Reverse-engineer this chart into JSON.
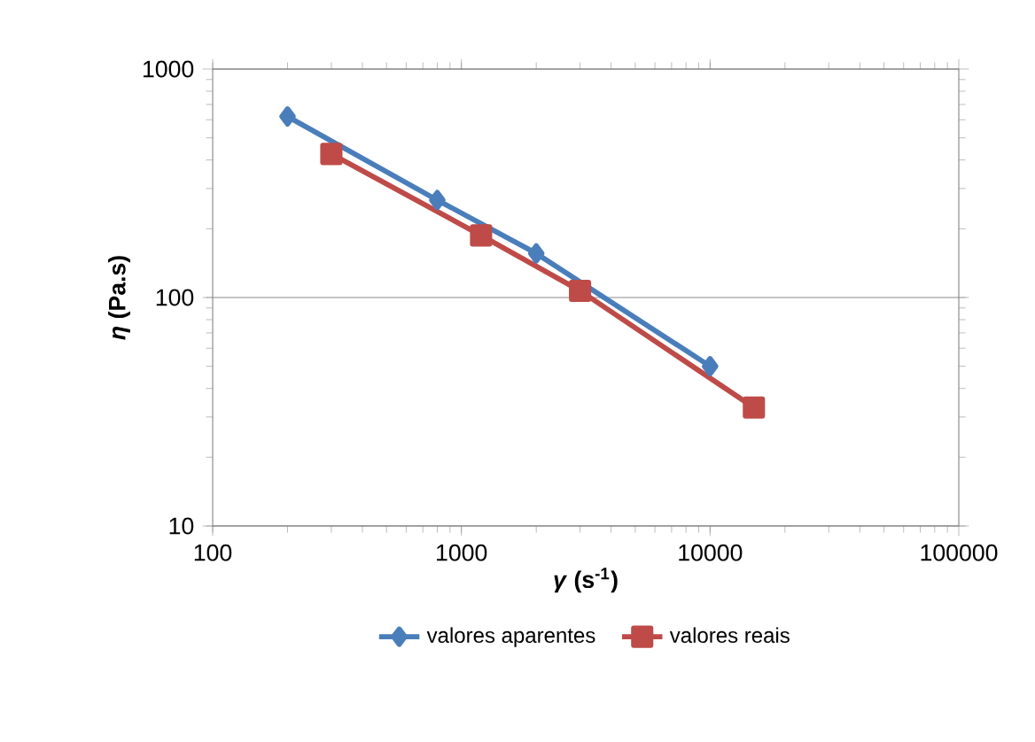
{
  "chart_data": {
    "type": "line",
    "xlabel": "*γ* (s$^{-1}$)",
    "ylabel": "*η* (Pa.s)",
    "log": "xy",
    "xlim": [
      100,
      100000
    ],
    "ylim": [
      10,
      1000
    ],
    "xticks": [
      100,
      1000,
      10000,
      100000
    ],
    "yticks": [
      10,
      100,
      1000
    ],
    "grid": "y",
    "legend": "bottom",
    "line_style": "solid",
    "series": [
      {
        "name": "valores aparentes",
        "color": "#4a7ebb",
        "marker": "diamond",
        "x": [
          200,
          800,
          2000,
          10000
        ],
        "values": [
          620,
          267,
          156,
          50
        ]
      },
      {
        "name": "valores reais",
        "color": "#be4b48",
        "marker": "square",
        "x": [
          300,
          1200,
          3000,
          15000
        ],
        "values": [
          425,
          187,
          107,
          33
        ]
      }
    ]
  }
}
